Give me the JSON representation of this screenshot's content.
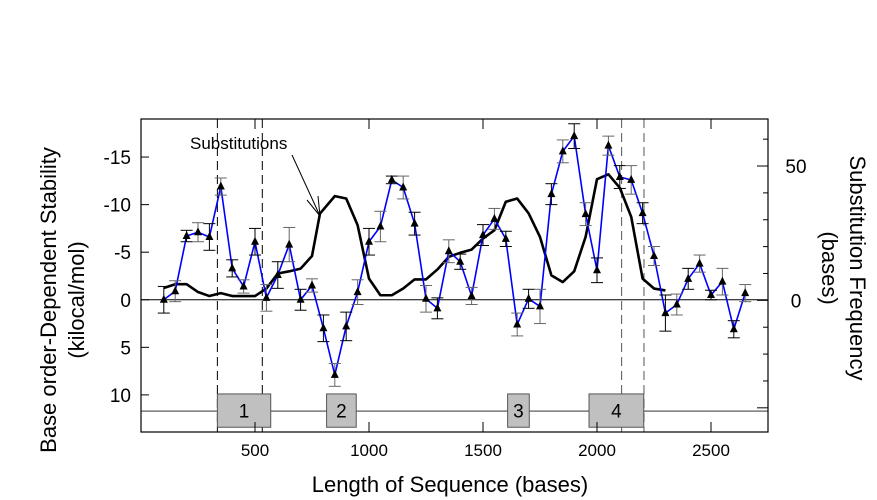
{
  "chart_data": {
    "type": "line",
    "title": "",
    "annotation": "Substitutions",
    "xlabel": "Length of Sequence (bases)",
    "ylabel_lines": [
      "Base order-Dependent Stability",
      "(kilocal/mol)"
    ],
    "y2label_lines": [
      "Substitution Frequency",
      "(bases)"
    ],
    "xlim": [
      0,
      2750
    ],
    "ylim": [
      -19,
      13.9
    ],
    "y_inverted": true,
    "y2lim": [
      -49,
      67.5
    ],
    "x_ticks": [
      500,
      1000,
      1500,
      2000,
      2500
    ],
    "x_tick_labels": [
      "500",
      "1000",
      "1500",
      "2000",
      "2500"
    ],
    "y_ticks": [
      -15,
      -10,
      -5,
      0,
      5,
      10
    ],
    "y_tick_labels": [
      "-15",
      "-10",
      "-5",
      "0",
      "5",
      "10"
    ],
    "y2_ticks": [
      -40,
      -30,
      -20,
      -10,
      0,
      10,
      20,
      30,
      40,
      50,
      60
    ],
    "y2_tick_labels": [
      {
        "value": 0,
        "label": "0"
      },
      {
        "value": 50,
        "label": "50"
      }
    ],
    "series": [
      {
        "name": "Base order-dependent stability",
        "axis": "left",
        "color": "#0000ff",
        "marker": "triangle",
        "x": [
          100,
          150,
          200,
          250,
          300,
          350,
          400,
          450,
          500,
          550,
          600,
          650,
          700,
          750,
          800,
          850,
          900,
          950,
          1000,
          1050,
          1100,
          1150,
          1200,
          1250,
          1300,
          1350,
          1400,
          1450,
          1500,
          1550,
          1600,
          1650,
          1700,
          1750,
          1800,
          1850,
          1900,
          1950,
          2000,
          2050,
          2100,
          2150,
          2200,
          2250,
          2300,
          2350,
          2400,
          2450,
          2500,
          2550,
          2600,
          2650
        ],
        "y": [
          0,
          -0.9,
          -6.7,
          -7.1,
          -6.6,
          -11.9,
          -3.3,
          -1.4,
          -6.1,
          -0.2,
          -2.6,
          -5.8,
          0,
          -1.5,
          3.0,
          7.9,
          2.8,
          -0.8,
          -6.1,
          -7.7,
          -12.6,
          -11.8,
          -8.0,
          -0.1,
          0.9,
          -5.1,
          -4.0,
          -0.4,
          -6.8,
          -8.5,
          -6.4,
          2.6,
          -0.1,
          0.7,
          -11.1,
          -15.6,
          -17.2,
          -9.0,
          -3.1,
          -16.2,
          -12.9,
          -12.6,
          -9.1,
          -4.6,
          1.4,
          0.5,
          -2.2,
          -3.8,
          -0.5,
          -1.9,
          3.1,
          -0.7
        ],
        "error": [
          1.4,
          1.1,
          0.6,
          1.0,
          1.4,
          0.9,
          0.9,
          0.7,
          1.4,
          1.4,
          1.4,
          1.8,
          1.1,
          0.7,
          1.4,
          1.2,
          1.5,
          1.3,
          1.4,
          1.6,
          0.4,
          1.2,
          1.2,
          1.4,
          1.1,
          1.2,
          0.8,
          0.9,
          1.1,
          1.1,
          0.8,
          1.2,
          1.0,
          1.8,
          1.1,
          1.2,
          1.3,
          1.2,
          1.3,
          1.0,
          1.2,
          1.5,
          1.1,
          1.0,
          1.9,
          1.1,
          1.1,
          0.9,
          0.5,
          1.4,
          0.9,
          0.9
        ]
      },
      {
        "name": "Substitutions",
        "axis": "right",
        "color": "#000000",
        "x": [
          100,
          150,
          200,
          250,
          300,
          350,
          400,
          450,
          500,
          550,
          600,
          650,
          700,
          750,
          785,
          850,
          900,
          950,
          1000,
          1050,
          1100,
          1150,
          1200,
          1250,
          1300,
          1350,
          1400,
          1450,
          1500,
          1550,
          1600,
          1650,
          1700,
          1750,
          1800,
          1850,
          1900,
          1950,
          2000,
          2050,
          2100,
          2150,
          2200,
          2250,
          2300
        ],
        "y": [
          4.6,
          6.0,
          6.0,
          3.1,
          1.6,
          2.7,
          1.6,
          1.6,
          1.6,
          4.4,
          10,
          10.8,
          11.8,
          16.5,
          32.3,
          38.8,
          37.9,
          28,
          8.1,
          1.9,
          1.9,
          4.4,
          7.8,
          7.8,
          11.5,
          16.2,
          17.7,
          18.9,
          23,
          26.1,
          36.7,
          37.9,
          32.4,
          23.6,
          9.3,
          6.8,
          10.8,
          23.6,
          45.1,
          46.9,
          41.9,
          31.1,
          8.1,
          4.4,
          3.7
        ]
      }
    ],
    "vertical_dashed_lines": [
      335,
      532,
      2108,
      2206
    ],
    "regions": [
      {
        "label": "1",
        "x0": 335,
        "x1": 569
      },
      {
        "label": "2",
        "x0": 814,
        "x1": 944
      },
      {
        "label": "3",
        "x0": 1608,
        "x1": 1703
      },
      {
        "label": "4",
        "x0": 1965,
        "x1": 2205
      }
    ],
    "region_band_y": [
      9.9,
      13.4
    ],
    "region_line_y": 11.7
  }
}
